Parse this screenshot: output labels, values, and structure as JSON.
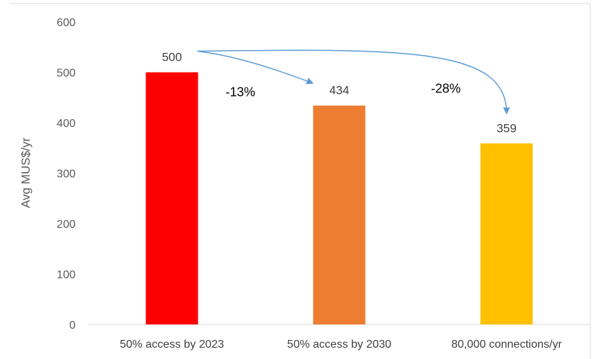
{
  "chart_data": {
    "type": "bar",
    "title": "",
    "ylabel": "Avg MUS$/yr",
    "xlabel": "",
    "ylim": [
      0,
      600
    ],
    "yticks": [
      0,
      100,
      200,
      300,
      400,
      500,
      600
    ],
    "grid": false,
    "legend": "none",
    "categories": [
      "50% access by 2023",
      "50% access by 2030",
      "80,000 connections/yr"
    ],
    "values": [
      500,
      434,
      359
    ],
    "data_labels": [
      "500",
      "434",
      "359"
    ],
    "colors": [
      "#ff0000",
      "#ed7d31",
      "#ffc000"
    ],
    "annotations": [
      {
        "text": "-13%",
        "from_category": 0,
        "to_category": 1
      },
      {
        "text": "-28%",
        "from_category": 0,
        "to_category": 2
      }
    ]
  }
}
